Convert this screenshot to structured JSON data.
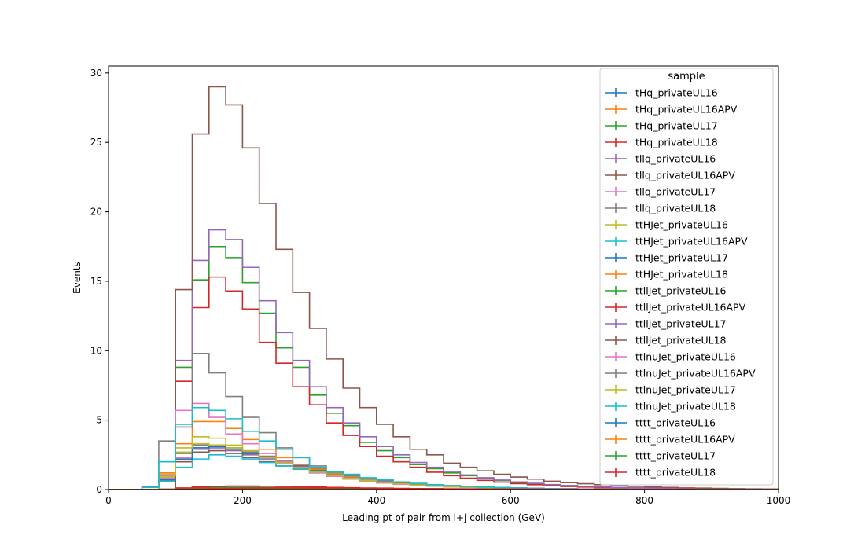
{
  "chart_data": {
    "type": "line",
    "step": "histogram",
    "xlabel": "Leading pt of pair from l+j collection (GeV)",
    "ylabel": "Events",
    "xlim": [
      0,
      1000
    ],
    "ylim": [
      0,
      30.5
    ],
    "xticks": [
      0,
      200,
      400,
      600,
      800,
      1000
    ],
    "yticks": [
      0,
      5,
      10,
      15,
      20,
      25,
      30
    ],
    "grid": false,
    "legend": {
      "title": "sample",
      "placement": "top-right"
    },
    "bin_edges": [
      0,
      25,
      50,
      75,
      100,
      125,
      150,
      175,
      200,
      225,
      250,
      275,
      300,
      325,
      350,
      375,
      400,
      425,
      450,
      475,
      500,
      525,
      550,
      575,
      600,
      625,
      650,
      675,
      700,
      725,
      750,
      775,
      800,
      825,
      850,
      875,
      900,
      925,
      950,
      975,
      1000
    ],
    "series": [
      {
        "name": "tHq_privateUL16",
        "color": "#1f77b4",
        "values": [
          0,
          0,
          0,
          0,
          0.05,
          0.08,
          0.1,
          0.1,
          0.1,
          0.1,
          0.08,
          0.08,
          0.07,
          0.06,
          0.05,
          0.05,
          0.04,
          0.03,
          0.03,
          0.02,
          0.02,
          0.02,
          0.01,
          0.01,
          0.01,
          0.01,
          0.01,
          0,
          0,
          0,
          0,
          0,
          0,
          0,
          0,
          0,
          0,
          0,
          0,
          0
        ]
      },
      {
        "name": "tHq_privateUL16APV",
        "color": "#ff7f0e",
        "values": [
          0,
          0,
          0,
          0,
          0.05,
          0.08,
          0.1,
          0.1,
          0.1,
          0.1,
          0.08,
          0.08,
          0.07,
          0.06,
          0.05,
          0.05,
          0.04,
          0.03,
          0.03,
          0.02,
          0.02,
          0.02,
          0.01,
          0.01,
          0.01,
          0.01,
          0.01,
          0,
          0,
          0,
          0,
          0,
          0,
          0,
          0,
          0,
          0,
          0,
          0,
          0
        ]
      },
      {
        "name": "tHq_privateUL17",
        "color": "#2ca02c",
        "values": [
          0,
          0,
          0,
          0,
          0.08,
          0.12,
          0.15,
          0.15,
          0.15,
          0.14,
          0.13,
          0.12,
          0.1,
          0.09,
          0.08,
          0.07,
          0.06,
          0.05,
          0.04,
          0.03,
          0.03,
          0.02,
          0.02,
          0.02,
          0.01,
          0.01,
          0.01,
          0.01,
          0,
          0,
          0,
          0,
          0,
          0,
          0,
          0,
          0,
          0,
          0,
          0
        ]
      },
      {
        "name": "tHq_privateUL18",
        "color": "#d62728",
        "values": [
          0,
          0,
          0,
          0.03,
          0.12,
          0.18,
          0.22,
          0.25,
          0.25,
          0.24,
          0.22,
          0.2,
          0.18,
          0.15,
          0.13,
          0.11,
          0.1,
          0.08,
          0.07,
          0.06,
          0.05,
          0.04,
          0.03,
          0.03,
          0.02,
          0.02,
          0.02,
          0.01,
          0.01,
          0.01,
          0.01,
          0,
          0,
          0,
          0,
          0,
          0,
          0,
          0,
          0
        ]
      },
      {
        "name": "tllq_privateUL16",
        "color": "#9467bd",
        "values": [
          0,
          0,
          0,
          0.7,
          2.2,
          2.9,
          3.0,
          2.8,
          2.5,
          2.2,
          1.9,
          1.6,
          1.35,
          1.1,
          0.9,
          0.75,
          0.6,
          0.5,
          0.4,
          0.32,
          0.26,
          0.2,
          0.16,
          0.13,
          0.1,
          0.08,
          0.06,
          0.05,
          0.04,
          0.03,
          0.02,
          0.02,
          0.01,
          0.01,
          0.01,
          0,
          0,
          0,
          0,
          0
        ]
      },
      {
        "name": "tllq_privateUL16APV",
        "color": "#8c564b",
        "values": [
          0,
          0,
          0,
          0.6,
          2.0,
          2.7,
          2.8,
          2.6,
          2.3,
          2.0,
          1.7,
          1.5,
          1.25,
          1.0,
          0.82,
          0.68,
          0.55,
          0.45,
          0.36,
          0.29,
          0.23,
          0.18,
          0.14,
          0.11,
          0.09,
          0.07,
          0.05,
          0.04,
          0.03,
          0.02,
          0.02,
          0.01,
          0.01,
          0.01,
          0,
          0,
          0,
          0,
          0,
          0
        ]
      },
      {
        "name": "tllq_privateUL17",
        "color": "#e377c2",
        "values": [
          0,
          0,
          0,
          0.8,
          2.3,
          3.0,
          3.1,
          2.9,
          2.6,
          2.3,
          2.0,
          1.7,
          1.4,
          1.15,
          0.95,
          0.78,
          0.63,
          0.52,
          0.42,
          0.33,
          0.27,
          0.21,
          0.17,
          0.13,
          0.1,
          0.08,
          0.06,
          0.05,
          0.04,
          0.03,
          0.02,
          0.02,
          0.01,
          0.01,
          0.01,
          0,
          0,
          0,
          0,
          0
        ]
      },
      {
        "name": "tllq_privateUL18",
        "color": "#7f7f7f",
        "values": [
          0,
          0,
          0,
          0.9,
          2.6,
          3.2,
          3.2,
          3.0,
          2.7,
          2.4,
          2.1,
          1.8,
          1.5,
          1.2,
          1.0,
          0.82,
          0.66,
          0.54,
          0.44,
          0.35,
          0.28,
          0.22,
          0.18,
          0.14,
          0.11,
          0.09,
          0.07,
          0.05,
          0.04,
          0.03,
          0.02,
          0.02,
          0.01,
          0.01,
          0.01,
          0,
          0,
          0,
          0,
          0
        ]
      },
      {
        "name": "ttHJet_privateUL16",
        "color": "#bcbd22",
        "values": [
          0,
          0,
          0,
          0.9,
          2.7,
          3.3,
          3.2,
          3.0,
          2.6,
          2.3,
          2.0,
          1.7,
          1.4,
          1.15,
          0.95,
          0.8,
          0.65,
          0.52,
          0.42,
          0.34,
          0.27,
          0.22,
          0.17,
          0.14,
          0.11,
          0.09,
          0.07,
          0.05,
          0.04,
          0.03,
          0.03,
          0.02,
          0.02,
          0.01,
          0.01,
          0.01,
          0,
          0,
          0,
          0
        ]
      },
      {
        "name": "ttHJet_privateUL16APV",
        "color": "#17becf",
        "values": [
          0,
          0,
          0,
          0.6,
          1.6,
          2.2,
          2.5,
          2.4,
          2.2,
          1.95,
          1.7,
          1.45,
          1.2,
          1.0,
          0.82,
          0.68,
          0.55,
          0.45,
          0.36,
          0.29,
          0.23,
          0.18,
          0.15,
          0.12,
          0.09,
          0.07,
          0.06,
          0.05,
          0.04,
          0.03,
          0.02,
          0.02,
          0.01,
          0.01,
          0.01,
          0,
          0,
          0,
          0,
          0
        ]
      },
      {
        "name": "ttHJet_privateUL17",
        "color": "#1f77b4",
        "values": [
          0,
          0,
          0,
          0.7,
          2.2,
          3.0,
          3.1,
          2.9,
          2.6,
          2.3,
          2.0,
          1.7,
          1.4,
          1.15,
          0.95,
          0.78,
          0.63,
          0.51,
          0.41,
          0.33,
          0.26,
          0.21,
          0.17,
          0.13,
          0.1,
          0.08,
          0.06,
          0.05,
          0.04,
          0.03,
          0.02,
          0.02,
          0.01,
          0.01,
          0.01,
          0,
          0,
          0,
          0,
          0
        ]
      },
      {
        "name": "ttHJet_privateUL18",
        "color": "#ff7f0e",
        "values": [
          0,
          0,
          0,
          1.2,
          3.3,
          4.9,
          4.9,
          4.4,
          3.6,
          2.9,
          2.3,
          1.8,
          1.45,
          1.15,
          0.92,
          0.74,
          0.6,
          0.48,
          0.38,
          0.3,
          0.24,
          0.19,
          0.15,
          0.12,
          0.09,
          0.07,
          0.06,
          0.05,
          0.04,
          0.03,
          0.02,
          0.02,
          0.01,
          0.01,
          0.01,
          0,
          0,
          0,
          0,
          0
        ]
      },
      {
        "name": "ttllJet_privateUL16",
        "color": "#2ca02c",
        "values": [
          0,
          0,
          0,
          0,
          8.8,
          15.1,
          17.5,
          16.7,
          14.9,
          12.7,
          10.2,
          8.8,
          6.8,
          5.5,
          4.6,
          3.4,
          2.8,
          2.3,
          1.8,
          1.5,
          1.2,
          1.0,
          0.8,
          0.65,
          0.5,
          0.42,
          0.35,
          0.28,
          0.22,
          0.18,
          0.15,
          0.12,
          0.1,
          0.08,
          0.06,
          0.05,
          0.04,
          0.03,
          0.03,
          0.02
        ]
      },
      {
        "name": "ttllJet_privateUL16APV",
        "color": "#d62728",
        "values": [
          0,
          0,
          0,
          0,
          7.8,
          13.1,
          15.3,
          14.3,
          13.0,
          10.6,
          9.1,
          7.4,
          6.1,
          4.8,
          3.9,
          3.1,
          2.4,
          2.0,
          1.6,
          1.25,
          1.0,
          0.82,
          0.66,
          0.53,
          0.43,
          0.35,
          0.28,
          0.22,
          0.18,
          0.14,
          0.11,
          0.09,
          0.07,
          0.06,
          0.05,
          0.04,
          0.03,
          0.02,
          0.02,
          0.01
        ]
      },
      {
        "name": "ttllJet_privateUL17",
        "color": "#9467bd",
        "values": [
          0,
          0,
          0,
          0,
          9.3,
          16.5,
          18.7,
          18.0,
          16.0,
          13.6,
          11.3,
          9.3,
          7.4,
          5.9,
          4.8,
          3.8,
          3.1,
          2.5,
          1.95,
          1.6,
          1.3,
          1.05,
          0.85,
          0.68,
          0.55,
          0.45,
          0.36,
          0.29,
          0.23,
          0.19,
          0.15,
          0.12,
          0.1,
          0.08,
          0.06,
          0.05,
          0.04,
          0.03,
          0.03,
          0.02
        ]
      },
      {
        "name": "ttllJet_privateUL18",
        "color": "#8c564b",
        "values": [
          0,
          0,
          0,
          0,
          14.4,
          25.6,
          29.0,
          27.7,
          24.6,
          20.6,
          17.3,
          14.2,
          11.6,
          9.4,
          7.3,
          5.9,
          4.7,
          3.8,
          2.9,
          2.5,
          1.9,
          1.6,
          1.35,
          1.1,
          0.9,
          0.75,
          0.6,
          0.5,
          0.42,
          0.35,
          0.28,
          0.23,
          0.19,
          0.15,
          0.12,
          0.1,
          0.08,
          0.06,
          0.05,
          0.04
        ]
      },
      {
        "name": "ttlnuJet_privateUL16",
        "color": "#e377c2",
        "values": [
          0,
          0,
          0,
          1.0,
          5.7,
          6.2,
          5.2,
          4.0,
          3.3,
          2.6,
          2.0,
          1.6,
          1.2,
          0.95,
          0.75,
          0.6,
          0.47,
          0.38,
          0.3,
          0.24,
          0.19,
          0.15,
          0.12,
          0.1,
          0.08,
          0.06,
          0.05,
          0.04,
          0.03,
          0.03,
          0.02,
          0.02,
          0.01,
          0.01,
          0.01,
          0,
          0,
          0,
          0,
          0
        ]
      },
      {
        "name": "ttlnuJet_privateUL16APV",
        "color": "#7f7f7f",
        "values": [
          0,
          0,
          0.2,
          3.5,
          4.5,
          9.8,
          8.4,
          6.7,
          5.2,
          4.1,
          3.0,
          2.3,
          1.7,
          1.3,
          1.0,
          0.8,
          0.62,
          0.5,
          0.4,
          0.32,
          0.25,
          0.2,
          0.16,
          0.13,
          0.1,
          0.08,
          0.06,
          0.05,
          0.04,
          0.03,
          0.03,
          0.02,
          0.02,
          0.01,
          0.01,
          0.01,
          0,
          0,
          0,
          0
        ]
      },
      {
        "name": "ttlnuJet_privateUL17",
        "color": "#bcbd22",
        "values": [
          0,
          0,
          0,
          1.1,
          3.0,
          3.8,
          3.7,
          3.2,
          2.8,
          2.3,
          1.9,
          1.55,
          1.25,
          1.0,
          0.8,
          0.64,
          0.51,
          0.41,
          0.33,
          0.26,
          0.21,
          0.17,
          0.13,
          0.1,
          0.08,
          0.07,
          0.05,
          0.04,
          0.03,
          0.03,
          0.02,
          0.02,
          0.01,
          0.01,
          0.01,
          0,
          0,
          0,
          0,
          0
        ]
      },
      {
        "name": "ttlnuJet_privateUL18",
        "color": "#17becf",
        "values": [
          0,
          0,
          0.15,
          2.0,
          4.7,
          5.9,
          5.7,
          5.1,
          4.2,
          3.5,
          2.9,
          2.3,
          1.6,
          1.25,
          1.1,
          0.85,
          0.7,
          0.55,
          0.44,
          0.35,
          0.28,
          0.22,
          0.18,
          0.14,
          0.11,
          0.09,
          0.07,
          0.05,
          0.04,
          0.03,
          0.03,
          0.02,
          0.02,
          0.01,
          0.01,
          0.01,
          0,
          0,
          0,
          0
        ]
      },
      {
        "name": "tttt_privateUL16",
        "color": "#1f77b4",
        "values": [
          0,
          0,
          0,
          0,
          0.01,
          0.02,
          0.03,
          0.04,
          0.05,
          0.05,
          0.05,
          0.05,
          0.05,
          0.05,
          0.04,
          0.04,
          0.04,
          0.03,
          0.03,
          0.03,
          0.02,
          0.02,
          0.02,
          0.02,
          0.01,
          0.01,
          0.01,
          0.01,
          0.01,
          0.01,
          0.01,
          0,
          0,
          0,
          0,
          0,
          0,
          0,
          0,
          0
        ]
      },
      {
        "name": "tttt_privateUL16APV",
        "color": "#ff7f0e",
        "values": [
          0,
          0,
          0,
          0,
          0.01,
          0.02,
          0.03,
          0.04,
          0.05,
          0.05,
          0.05,
          0.05,
          0.05,
          0.05,
          0.04,
          0.04,
          0.04,
          0.03,
          0.03,
          0.03,
          0.02,
          0.02,
          0.02,
          0.02,
          0.01,
          0.01,
          0.01,
          0.01,
          0.01,
          0.01,
          0.01,
          0,
          0,
          0,
          0,
          0,
          0,
          0,
          0,
          0
        ]
      },
      {
        "name": "tttt_privateUL17",
        "color": "#2ca02c",
        "values": [
          0,
          0,
          0,
          0,
          0.02,
          0.03,
          0.05,
          0.06,
          0.07,
          0.08,
          0.08,
          0.08,
          0.08,
          0.07,
          0.07,
          0.06,
          0.06,
          0.05,
          0.05,
          0.04,
          0.04,
          0.03,
          0.03,
          0.02,
          0.02,
          0.02,
          0.02,
          0.01,
          0.01,
          0.01,
          0.01,
          0.01,
          0.01,
          0,
          0,
          0,
          0,
          0,
          0,
          0
        ]
      },
      {
        "name": "tttt_privateUL18",
        "color": "#d62728",
        "values": [
          0,
          0,
          0,
          0,
          0.02,
          0.04,
          0.06,
          0.08,
          0.1,
          0.11,
          0.11,
          0.11,
          0.11,
          0.1,
          0.1,
          0.09,
          0.08,
          0.07,
          0.07,
          0.06,
          0.05,
          0.05,
          0.04,
          0.04,
          0.03,
          0.03,
          0.02,
          0.02,
          0.02,
          0.02,
          0.01,
          0.01,
          0.01,
          0.01,
          0.01,
          0,
          0,
          0,
          0,
          0
        ]
      }
    ]
  }
}
